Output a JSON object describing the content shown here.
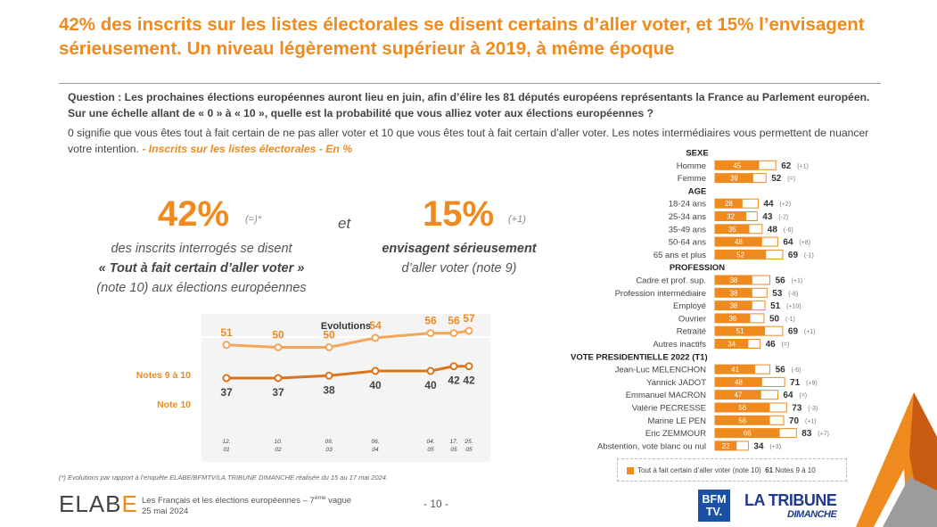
{
  "title": "42% des inscrits sur les listes électorales se disent certains d’aller voter, et 15% l’envisagent sérieusement. Un niveau légèrement supérieur à 2019, à même époque",
  "question": "Question : Les prochaines élections européennes auront lieu en juin, afin d’élire les 81 députés européens représentants la France au Parlement européen. Sur une échelle allant de « 0 » à « 10 », quelle est la probabilité que vous alliez voter aux élections européennes ?",
  "explain": "0 signifie que vous êtes tout à fait certain de ne pas aller voter et 10 que vous êtes tout à fait certain d’aller voter. Les notes intermédiaires vous permettent de nuancer votre intention.",
  "explain_sample": "- Inscrits sur les listes électorales - En %",
  "kpi1": {
    "value": "42%",
    "change": "(=)*",
    "line1": "des inscrits interrogés se disent",
    "line2": "« Tout à fait certain d’aller voter »",
    "line3": "(note 10) aux élections européennes"
  },
  "connector": "et",
  "kpi2": {
    "value": "15%",
    "change": "(+1)",
    "line1": "envisagent sérieusement",
    "line2": "d’aller voter (note 9)"
  },
  "footnote": "(*) Evolutions par rapport à l’enquête ELABE/BFMTV/LA TRIBUNE DIMANCHE réalisée du 15 au 17 mai 2024.",
  "footer": {
    "brand_a": "ELAB",
    "brand_b": "E",
    "line1": "Les Français et les élections européennes – 7",
    "line1_sup": "ème",
    "line1_end": " vague",
    "line2": "25 mai 2024",
    "page": "- 10 -",
    "bfm_a": "BFM",
    "bfm_b": "TV.",
    "tribune": "LA TRIBUNE",
    "tribune_sub": "DIMANCHE"
  },
  "colors": {
    "orange": "#ef8a1f",
    "orange_light": "#f2a65a",
    "grey_text": "#444444"
  },
  "chart_data": [
    {
      "type": "line",
      "title": "Evolutions",
      "categories": [
        "12.\n01",
        "10.\n02",
        "09.\n03",
        "06.\n04",
        "04.\n05",
        "17.\n05",
        "25.\n05"
      ],
      "series": [
        {
          "name": "Notes 9 à 10",
          "values": [
            51,
            50,
            50,
            54,
            56,
            56,
            57
          ]
        },
        {
          "name": "Note 10",
          "values": [
            37,
            37,
            38,
            40,
            40,
            42,
            42
          ]
        }
      ]
    },
    {
      "type": "bar",
      "legend": {
        "label_a": "Tout à fait certain d’aller voter (note 10)",
        "value_b": "61",
        "label_b": "Notes  9 à 10"
      },
      "groups": [
        {
          "header": "SEXE",
          "rows": [
            {
              "label": "Homme",
              "note10": 45,
              "note9_10": 62,
              "change": "(+1)"
            },
            {
              "label": "Femme",
              "note10": 39,
              "note9_10": 52,
              "change": "(=)"
            }
          ]
        },
        {
          "header": "AGE",
          "rows": [
            {
              "label": "18-24 ans",
              "note10": 28,
              "note9_10": 44,
              "change": "(+2)"
            },
            {
              "label": "25-34 ans",
              "note10": 32,
              "note9_10": 43,
              "change": "(-2)"
            },
            {
              "label": "35-49 ans",
              "note10": 35,
              "note9_10": 48,
              "change": "(-6)"
            },
            {
              "label": "50-64 ans",
              "note10": 48,
              "note9_10": 64,
              "change": "(+8)"
            },
            {
              "label": "65 ans et plus",
              "note10": 52,
              "note9_10": 69,
              "change": "(-1)"
            }
          ]
        },
        {
          "header": "PROFESSION",
          "rows": [
            {
              "label": "Cadre et prof. sup.",
              "note10": 38,
              "note9_10": 56,
              "change": "(+1)"
            },
            {
              "label": "Profession intermédiaire",
              "note10": 38,
              "note9_10": 53,
              "change": "(-8)"
            },
            {
              "label": "Employé",
              "note10": 38,
              "note9_10": 51,
              "change": "(+10)"
            },
            {
              "label": "Ouvrier",
              "note10": 36,
              "note9_10": 50,
              "change": "(-1)"
            },
            {
              "label": "Retraité",
              "note10": 51,
              "note9_10": 69,
              "change": "(+1)"
            },
            {
              "label": "Autres inactifs",
              "note10": 34,
              "note9_10": 46,
              "change": "(=)"
            }
          ]
        },
        {
          "header": "VOTE PRESIDENTIELLE 2022 (T1)",
          "rows": [
            {
              "label": "Jean-Luc MELENCHON",
              "note10": 41,
              "note9_10": 56,
              "change": "(-6)"
            },
            {
              "label": "Yannick JADOT",
              "note10": 48,
              "note9_10": 71,
              "change": "(+9)"
            },
            {
              "label": "Emmanuel MACRON",
              "note10": 47,
              "note9_10": 64,
              "change": "(=)"
            },
            {
              "label": "Valérie PECRESSE",
              "note10": 56,
              "note9_10": 73,
              "change": "(-3)"
            },
            {
              "label": "Marine LE PEN",
              "note10": 56,
              "note9_10": 70,
              "change": "(+1)"
            },
            {
              "label": "Eric ZEMMOUR",
              "note10": 66,
              "note9_10": 83,
              "change": "(+7)"
            },
            {
              "label": "Abstention, vote blanc ou nul",
              "note10": 22,
              "note9_10": 34,
              "change": "(+3)"
            }
          ]
        }
      ]
    }
  ]
}
